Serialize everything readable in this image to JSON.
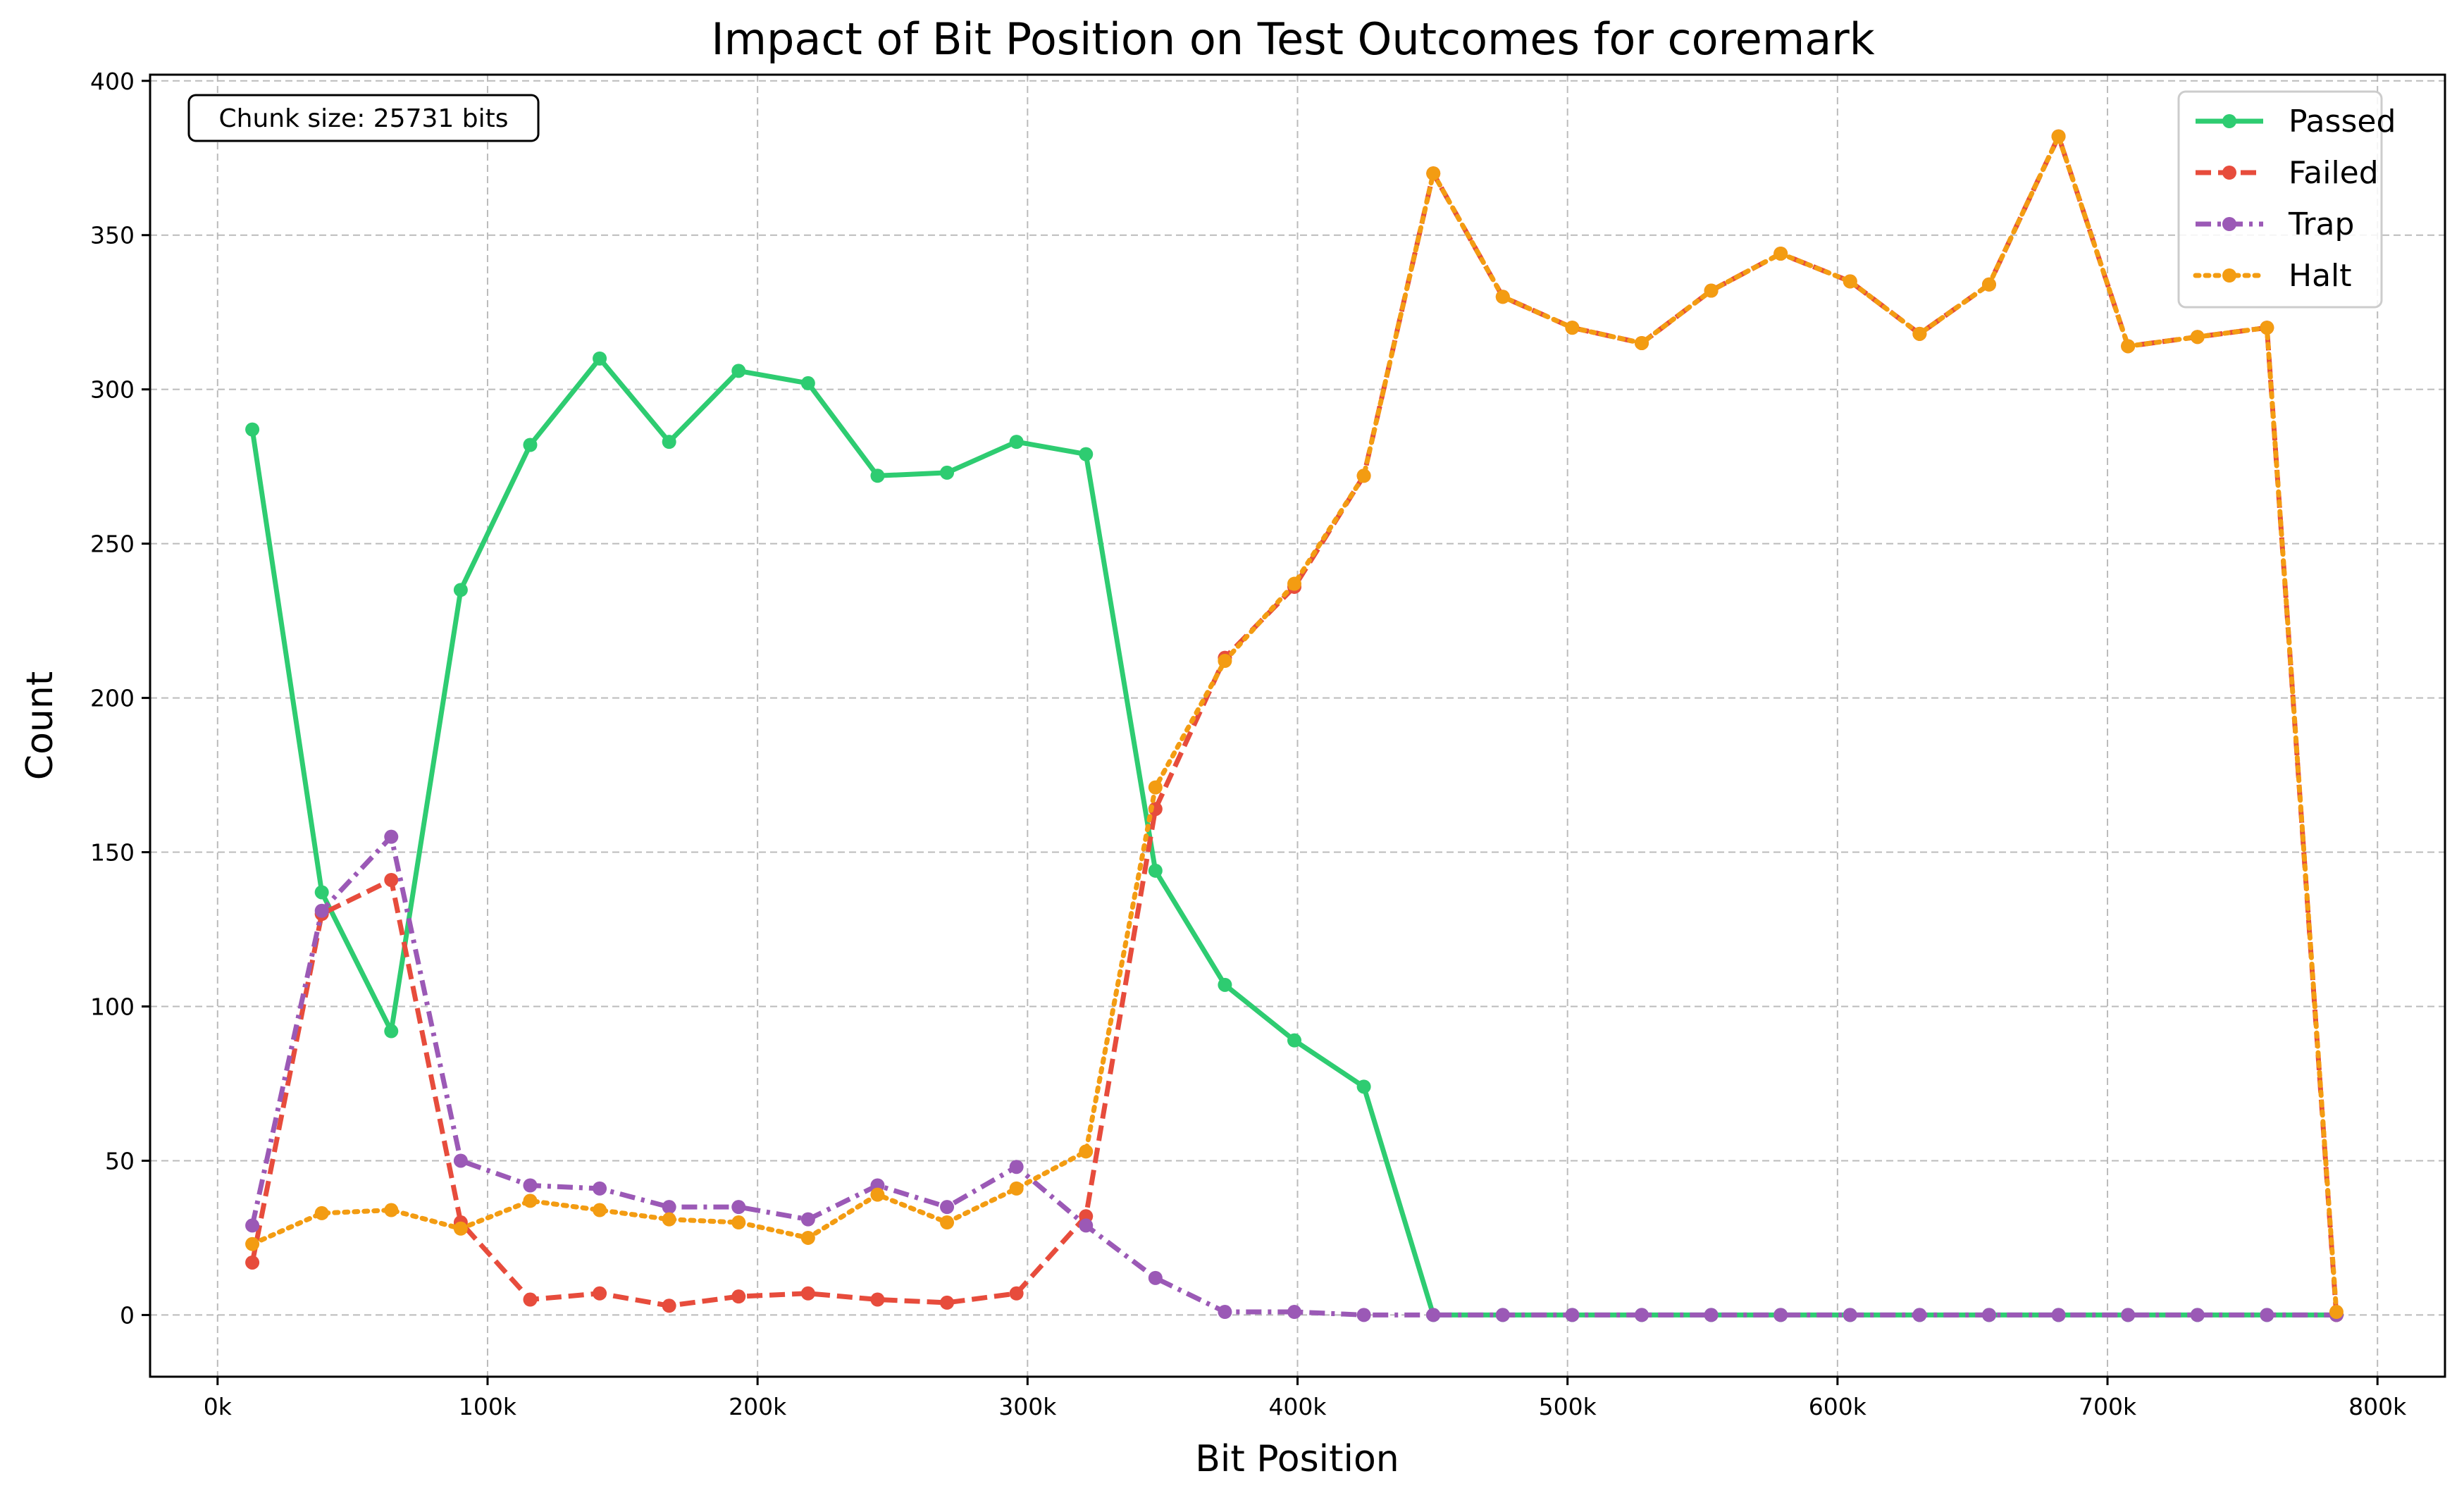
{
  "chart_data": {
    "type": "line",
    "title": "Impact of Bit Position on Test Outcomes for coremark",
    "xlabel": "Bit Position",
    "ylabel": "Count",
    "xlim": [
      -25000,
      825000
    ],
    "ylim": [
      -20,
      402
    ],
    "xticks": [
      0,
      100000,
      200000,
      300000,
      400000,
      500000,
      600000,
      700000,
      800000
    ],
    "xtick_labels": [
      "0k",
      "100k",
      "200k",
      "300k",
      "400k",
      "500k",
      "600k",
      "700k",
      "800k"
    ],
    "yticks": [
      0,
      50,
      100,
      150,
      200,
      250,
      300,
      350,
      400
    ],
    "ytick_labels": [
      "0",
      "50",
      "100",
      "150",
      "200",
      "250",
      "300",
      "350",
      "400"
    ],
    "grid": true,
    "legend_position": "top-right",
    "annotation": "Chunk size: 25731 bits",
    "x": [
      12865,
      38596,
      64327,
      90058,
      115789,
      141520,
      167251,
      192982,
      218713,
      244444,
      270175,
      295906,
      321637,
      347368,
      373099,
      398830,
      424561,
      450292,
      476023,
      501754,
      527485,
      553216,
      578947,
      604678,
      630409,
      656140,
      681871,
      707602,
      733333,
      759064,
      784795
    ],
    "series": [
      {
        "name": "Passed",
        "color": "#2ecc71",
        "dash": "solid",
        "values": [
          287,
          137,
          92,
          235,
          282,
          310,
          283,
          306,
          302,
          272,
          273,
          283,
          279,
          144,
          107,
          89,
          74,
          0,
          0,
          0,
          0,
          0,
          0,
          0,
          0,
          0,
          0,
          0,
          0,
          0,
          0
        ]
      },
      {
        "name": "Failed",
        "color": "#e74c3c",
        "dash": "dashed",
        "values": [
          17,
          130,
          141,
          30,
          5,
          7,
          3,
          6,
          7,
          5,
          4,
          7,
          32,
          164,
          213,
          236,
          272,
          370,
          330,
          320,
          315,
          332,
          344,
          335,
          318,
          334,
          382,
          314,
          317,
          320,
          0
        ]
      },
      {
        "name": "Trap",
        "color": "#9b59b6",
        "dash": "dashdot",
        "values": [
          29,
          131,
          155,
          50,
          42,
          41,
          35,
          35,
          31,
          42,
          35,
          48,
          29,
          12,
          1,
          1,
          0,
          0,
          0,
          0,
          0,
          0,
          0,
          0,
          0,
          0,
          0,
          0,
          0,
          0,
          0
        ]
      },
      {
        "name": "Halt",
        "color": "#f39c12",
        "dash": "dotted",
        "values": [
          23,
          33,
          34,
          28,
          37,
          34,
          31,
          30,
          25,
          39,
          30,
          41,
          53,
          171,
          212,
          237,
          272,
          370,
          330,
          320,
          315,
          332,
          344,
          335,
          318,
          334,
          382,
          314,
          317,
          320,
          1
        ]
      }
    ]
  }
}
